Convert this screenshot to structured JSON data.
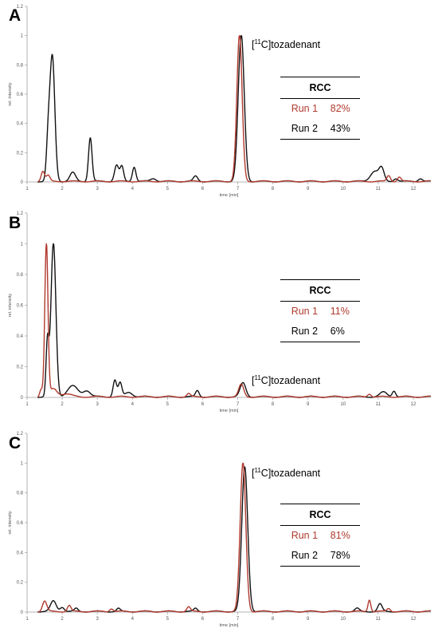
{
  "colors": {
    "run1": "#b03a2e",
    "run2": "#111111",
    "axis": "#9e9e9e"
  },
  "panels": [
    {
      "letter": "A",
      "peak_label": "[11C]tozadenant",
      "table": {
        "header": "RCC",
        "rows": [
          {
            "run": "Run 1",
            "value": "82%"
          },
          {
            "run": "Run 2",
            "value": "43%"
          }
        ]
      }
    },
    {
      "letter": "B",
      "peak_label": "[11C]tozadenant",
      "table": {
        "header": "RCC",
        "rows": [
          {
            "run": "Run 1",
            "value": "11%"
          },
          {
            "run": "Run 2",
            "value": "6%"
          }
        ]
      }
    },
    {
      "letter": "C",
      "peak_label": "[11C]tozadenant",
      "table": {
        "header": "RCC",
        "rows": [
          {
            "run": "Run 1",
            "value": "81%"
          },
          {
            "run": "Run 2",
            "value": "78%"
          }
        ]
      }
    }
  ],
  "chart_data": [
    {
      "type": "line",
      "panel": "A",
      "xlabel": "time [min]",
      "ylabel": "rel. intensity",
      "xlim": [
        1,
        12.5
      ],
      "ylim": [
        0,
        1.2
      ],
      "x_ticks": [
        1,
        2,
        3,
        4,
        5,
        6,
        7,
        8,
        9,
        10,
        11,
        12
      ],
      "y_ticks": [
        0,
        0.2,
        0.4,
        0.6,
        0.8,
        1,
        1.2
      ],
      "series": [
        {
          "name": "Run 1",
          "color": "#b03a2e",
          "peaks": [
            {
              "t": 1.45,
              "h": 0.07,
              "w": 0.05
            },
            {
              "t": 1.6,
              "h": 0.04,
              "w": 0.05
            },
            {
              "t": 7.05,
              "h": 1.0,
              "w": 0.075
            },
            {
              "t": 11.3,
              "h": 0.04,
              "w": 0.05
            },
            {
              "t": 11.6,
              "h": 0.03,
              "w": 0.05
            }
          ]
        },
        {
          "name": "Run 2",
          "color": "#111111",
          "peaks": [
            {
              "t": 1.72,
              "h": 0.85,
              "w": 0.07
            },
            {
              "t": 1.6,
              "h": 0.25,
              "w": 0.05
            },
            {
              "t": 2.3,
              "h": 0.06,
              "w": 0.08
            },
            {
              "t": 2.8,
              "h": 0.3,
              "w": 0.05
            },
            {
              "t": 3.55,
              "h": 0.11,
              "w": 0.06
            },
            {
              "t": 3.7,
              "h": 0.1,
              "w": 0.05
            },
            {
              "t": 4.05,
              "h": 0.1,
              "w": 0.05
            },
            {
              "t": 4.6,
              "h": 0.02,
              "w": 0.08
            },
            {
              "t": 5.8,
              "h": 0.035,
              "w": 0.06
            },
            {
              "t": 7.1,
              "h": 1.0,
              "w": 0.085
            },
            {
              "t": 10.9,
              "h": 0.07,
              "w": 0.12
            },
            {
              "t": 11.1,
              "h": 0.08,
              "w": 0.07
            },
            {
              "t": 11.5,
              "h": 0.02,
              "w": 0.06
            },
            {
              "t": 12.2,
              "h": 0.02,
              "w": 0.06
            }
          ]
        }
      ]
    },
    {
      "type": "line",
      "panel": "B",
      "xlabel": "time [min]",
      "ylabel": "rel. intensity",
      "xlim": [
        1,
        12.5
      ],
      "ylim": [
        0,
        1.2
      ],
      "x_ticks": [
        1,
        2,
        3,
        4,
        5,
        6,
        7,
        8,
        9,
        10,
        11,
        12
      ],
      "y_ticks": [
        0,
        0.2,
        0.4,
        0.6,
        0.8,
        1,
        1.2
      ],
      "series": [
        {
          "name": "Run 1",
          "color": "#b03a2e",
          "peaks": [
            {
              "t": 1.55,
              "h": 1.0,
              "w": 0.045
            },
            {
              "t": 1.4,
              "h": 0.05,
              "w": 0.04
            },
            {
              "t": 1.75,
              "h": 0.05,
              "w": 0.1
            },
            {
              "t": 2.1,
              "h": 0.02,
              "w": 0.15
            },
            {
              "t": 5.6,
              "h": 0.02,
              "w": 0.05
            },
            {
              "t": 7.1,
              "h": 0.08,
              "w": 0.07
            },
            {
              "t": 10.75,
              "h": 0.02,
              "w": 0.05
            }
          ]
        },
        {
          "name": "Run 2",
          "color": "#111111",
          "peaks": [
            {
              "t": 1.75,
              "h": 1.0,
              "w": 0.07
            },
            {
              "t": 1.58,
              "h": 0.35,
              "w": 0.04
            },
            {
              "t": 2.3,
              "h": 0.07,
              "w": 0.15
            },
            {
              "t": 2.7,
              "h": 0.04,
              "w": 0.1
            },
            {
              "t": 3.5,
              "h": 0.11,
              "w": 0.05
            },
            {
              "t": 3.65,
              "h": 0.09,
              "w": 0.05
            },
            {
              "t": 3.9,
              "h": 0.03,
              "w": 0.1
            },
            {
              "t": 5.85,
              "h": 0.04,
              "w": 0.05
            },
            {
              "t": 7.15,
              "h": 0.09,
              "w": 0.08
            },
            {
              "t": 11.15,
              "h": 0.03,
              "w": 0.1
            },
            {
              "t": 11.45,
              "h": 0.04,
              "w": 0.05
            }
          ]
        }
      ]
    },
    {
      "type": "line",
      "panel": "C",
      "xlabel": "time [min]",
      "ylabel": "rel. intensity",
      "xlim": [
        1,
        12.5
      ],
      "ylim": [
        0,
        1.2
      ],
      "x_ticks": [
        1,
        2,
        3,
        4,
        5,
        6,
        7,
        8,
        9,
        10,
        11,
        12
      ],
      "y_ticks": [
        0,
        0.2,
        0.4,
        0.6,
        0.8,
        1,
        1.2
      ],
      "series": [
        {
          "name": "Run 1",
          "color": "#b03a2e",
          "peaks": [
            {
              "t": 1.5,
              "h": 0.07,
              "w": 0.06
            },
            {
              "t": 2.2,
              "h": 0.04,
              "w": 0.05
            },
            {
              "t": 3.4,
              "h": 0.02,
              "w": 0.05
            },
            {
              "t": 5.6,
              "h": 0.03,
              "w": 0.05
            },
            {
              "t": 7.15,
              "h": 1.0,
              "w": 0.08
            },
            {
              "t": 10.75,
              "h": 0.08,
              "w": 0.04
            },
            {
              "t": 11.3,
              "h": 0.02,
              "w": 0.05
            }
          ]
        },
        {
          "name": "Run 2",
          "color": "#111111",
          "peaks": [
            {
              "t": 1.75,
              "h": 0.07,
              "w": 0.08
            },
            {
              "t": 2.0,
              "h": 0.03,
              "w": 0.06
            },
            {
              "t": 2.4,
              "h": 0.02,
              "w": 0.05
            },
            {
              "t": 3.6,
              "h": 0.02,
              "w": 0.05
            },
            {
              "t": 5.8,
              "h": 0.02,
              "w": 0.05
            },
            {
              "t": 7.2,
              "h": 0.97,
              "w": 0.085
            },
            {
              "t": 10.4,
              "h": 0.02,
              "w": 0.06
            },
            {
              "t": 11.05,
              "h": 0.05,
              "w": 0.06
            }
          ]
        }
      ]
    }
  ]
}
